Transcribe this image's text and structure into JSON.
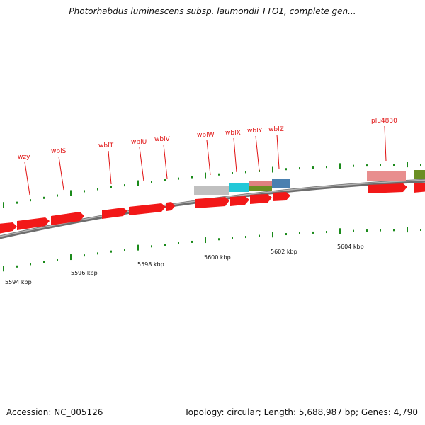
{
  "title": "Photorhabdus luminescens subsp. laumondii TTO1, complete gen...",
  "accession": "Accession: NC_005126",
  "summary": "Topology: circular; Length: 5,688,987 bp; Genes: 4,790",
  "colors": {
    "gene_forward": "#f21818",
    "gene_label": "#e01010",
    "backbone": "#8a8a8a",
    "tick": "#1a8a1a",
    "feature_gray": "#c0c0c0",
    "feature_cyan": "#22c8d8",
    "feature_pink": "#e08080",
    "feature_olive": "#6b8e23",
    "feature_blue": "#4a80b0"
  },
  "gene_labels": [
    "wzy",
    "wblS",
    "wblT",
    "wblU",
    "wblV",
    "wblW",
    "wblX",
    "wblY",
    "wblZ",
    "plu4830"
  ],
  "scale_labels": [
    "5594 kbp",
    "5596 kbp",
    "5598 kbp",
    "5600 kbp",
    "5602 kbp",
    "5604 kbp"
  ]
}
